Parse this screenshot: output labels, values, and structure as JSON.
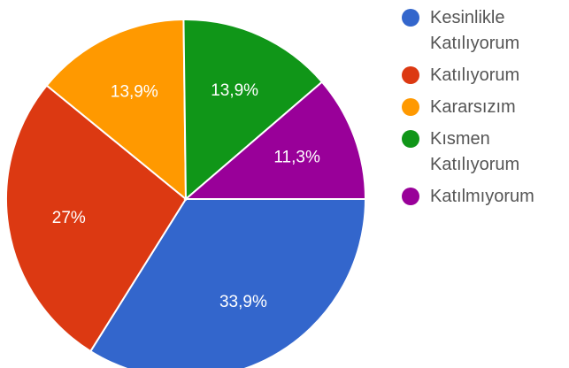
{
  "chart_data": {
    "type": "pie",
    "title": "",
    "legend_position": "right",
    "slices": [
      {
        "label": "Kesinlikle Katılıyorum",
        "value": 33.9,
        "display": "33,9%",
        "color": "#3366CC"
      },
      {
        "label": "Katılıyorum",
        "value": 27.0,
        "display": "27%",
        "color": "#DC3912"
      },
      {
        "label": "Kararsızım",
        "value": 13.9,
        "display": "13,9%",
        "color": "#FF9900"
      },
      {
        "label": "Kısmen Katılıyorum",
        "value": 13.9,
        "display": "13,9%",
        "color": "#109618"
      },
      {
        "label": "Katılmıyorum",
        "value": 11.3,
        "display": "11,3%",
        "color": "#990099"
      }
    ]
  }
}
